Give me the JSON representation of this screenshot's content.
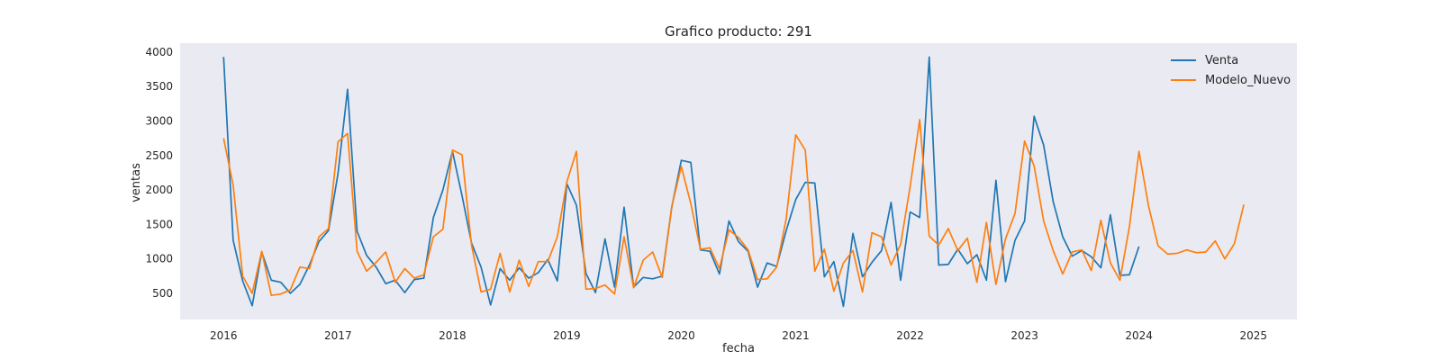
{
  "chart_data": {
    "type": "line",
    "title": "Grafico producto: 291",
    "xlabel": "fecha",
    "ylabel": "ventas",
    "xlim": [
      2015.62,
      2025.38
    ],
    "ylim": [
      120,
      4130
    ],
    "xticks": [
      2016,
      2017,
      2018,
      2019,
      2020,
      2021,
      2022,
      2023,
      2024,
      2025
    ],
    "yticks": [
      500,
      1000,
      1500,
      2000,
      2500,
      3000,
      3500,
      4000
    ],
    "grid": false,
    "background": "#eaeaf2",
    "legend_position": "top-right",
    "series": [
      {
        "name": "Venta",
        "color": "#1f77b4",
        "start_year": 2016,
        "values": [
          3930,
          1270,
          680,
          320,
          1100,
          690,
          660,
          500,
          630,
          910,
          1250,
          1410,
          2240,
          3460,
          1400,
          1050,
          880,
          640,
          690,
          510,
          700,
          720,
          1600,
          2000,
          2560,
          1920,
          1230,
          880,
          330,
          860,
          690,
          870,
          720,
          800,
          990,
          680,
          2090,
          1780,
          790,
          510,
          1290,
          590,
          1750,
          590,
          730,
          710,
          750,
          1750,
          2430,
          2400,
          1130,
          1110,
          780,
          1550,
          1250,
          1110,
          590,
          940,
          890,
          1410,
          1860,
          2110,
          2100,
          740,
          960,
          310,
          1370,
          740,
          950,
          1120,
          1820,
          690,
          1680,
          1600,
          3930,
          910,
          920,
          1140,
          930,
          1060,
          690,
          2140,
          670,
          1270,
          1550,
          3070,
          2650,
          1830,
          1320,
          1040,
          1120,
          1030,
          870,
          1640,
          760,
          770,
          1180
        ]
      },
      {
        "name": "Modelo_Nuevo",
        "color": "#ff7f0e",
        "start_year": 2016,
        "values": [
          2750,
          2070,
          750,
          500,
          1110,
          470,
          490,
          550,
          880,
          860,
          1320,
          1440,
          2700,
          2820,
          1110,
          820,
          950,
          1100,
          660,
          860,
          720,
          770,
          1320,
          1430,
          2580,
          2510,
          1200,
          520,
          560,
          1080,
          520,
          980,
          600,
          960,
          960,
          1320,
          2120,
          2560,
          560,
          570,
          620,
          490,
          1320,
          580,
          980,
          1100,
          730,
          1760,
          2340,
          1800,
          1140,
          1160,
          860,
          1420,
          1310,
          1130,
          700,
          710,
          880,
          1580,
          2800,
          2580,
          820,
          1140,
          530,
          940,
          1120,
          520,
          1380,
          1320,
          910,
          1210,
          2050,
          3020,
          1330,
          1200,
          1440,
          1120,
          1300,
          660,
          1530,
          630,
          1290,
          1660,
          2710,
          2350,
          1550,
          1120,
          780,
          1100,
          1130,
          830,
          1560,
          940,
          690,
          1470,
          2560,
          1770,
          1190,
          1070,
          1080,
          1130,
          1090,
          1100,
          1260,
          1000,
          1220,
          1790
        ]
      }
    ]
  }
}
